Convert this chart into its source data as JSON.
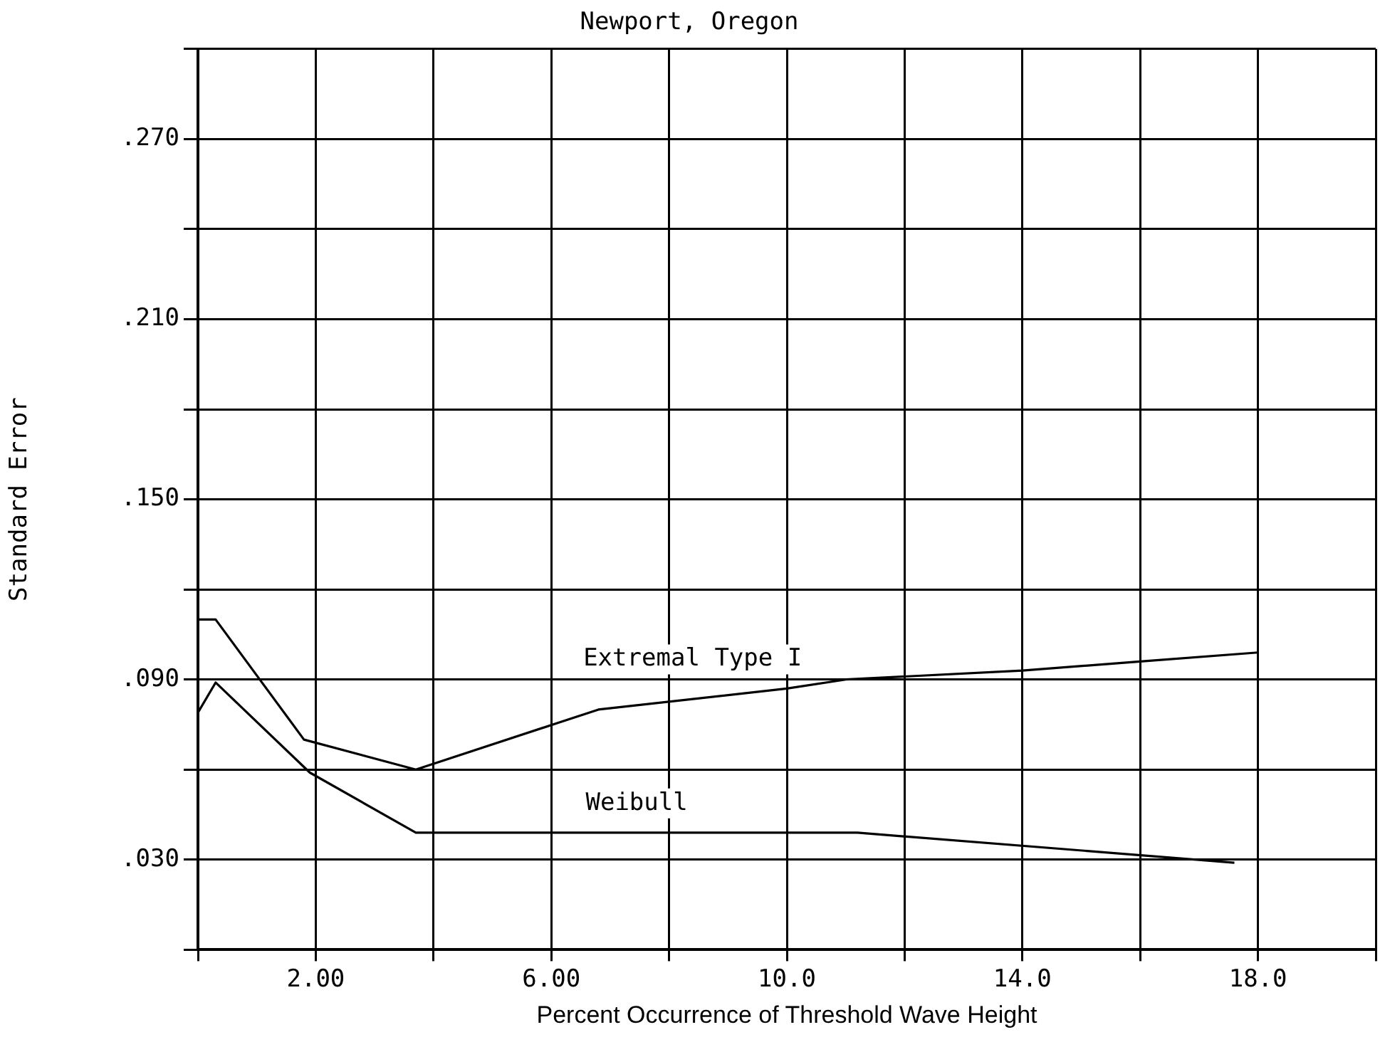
{
  "chart_data": {
    "type": "line",
    "title": "Newport, Oregon",
    "xlabel": "Percent Occurrence of Threshold Wave Height",
    "ylabel": "Standard Error",
    "xlim": [
      0,
      20
    ],
    "xticks": [
      {
        "value": 0,
        "label": null
      },
      {
        "value": 2,
        "label": "2.00"
      },
      {
        "value": 4,
        "label": null
      },
      {
        "value": 6,
        "label": "6.00"
      },
      {
        "value": 8,
        "label": null
      },
      {
        "value": 10,
        "label": "10.0"
      },
      {
        "value": 12,
        "label": null
      },
      {
        "value": 14,
        "label": "14.0"
      },
      {
        "value": 16,
        "label": null
      },
      {
        "value": 18,
        "label": "18.0"
      },
      {
        "value": 20,
        "label": null
      }
    ],
    "ylim": [
      0,
      0.3
    ],
    "yticks": [
      {
        "value": 0,
        "label": null
      },
      {
        "value": 0.03,
        "label": ".030"
      },
      {
        "value": 0.06,
        "label": null
      },
      {
        "value": 0.09,
        "label": ".090"
      },
      {
        "value": 0.12,
        "label": null
      },
      {
        "value": 0.15,
        "label": ".150"
      },
      {
        "value": 0.18,
        "label": null
      },
      {
        "value": 0.21,
        "label": ".210"
      },
      {
        "value": 0.24,
        "label": null
      },
      {
        "value": 0.27,
        "label": ".270"
      },
      {
        "value": 0.3,
        "label": null
      }
    ],
    "grid": true,
    "legend": false,
    "marker": "none",
    "line_style": "solid",
    "series": [
      {
        "name": "Extremal Type I",
        "color": "#000000",
        "x": [
          0,
          0.3,
          1.8,
          3.7,
          6.8,
          10,
          11,
          14,
          16,
          18
        ],
        "values": [
          0.11,
          0.11,
          0.07,
          0.06,
          0.08,
          0.087,
          0.09,
          0.093,
          0.096,
          0.099
        ]
      },
      {
        "name": "Weibull",
        "color": "#000000",
        "x": [
          0,
          0.3,
          1.9,
          3.7,
          11.2,
          17.6
        ],
        "values": [
          0.079,
          0.089,
          0.059,
          0.039,
          0.039,
          0.029
        ]
      }
    ]
  }
}
